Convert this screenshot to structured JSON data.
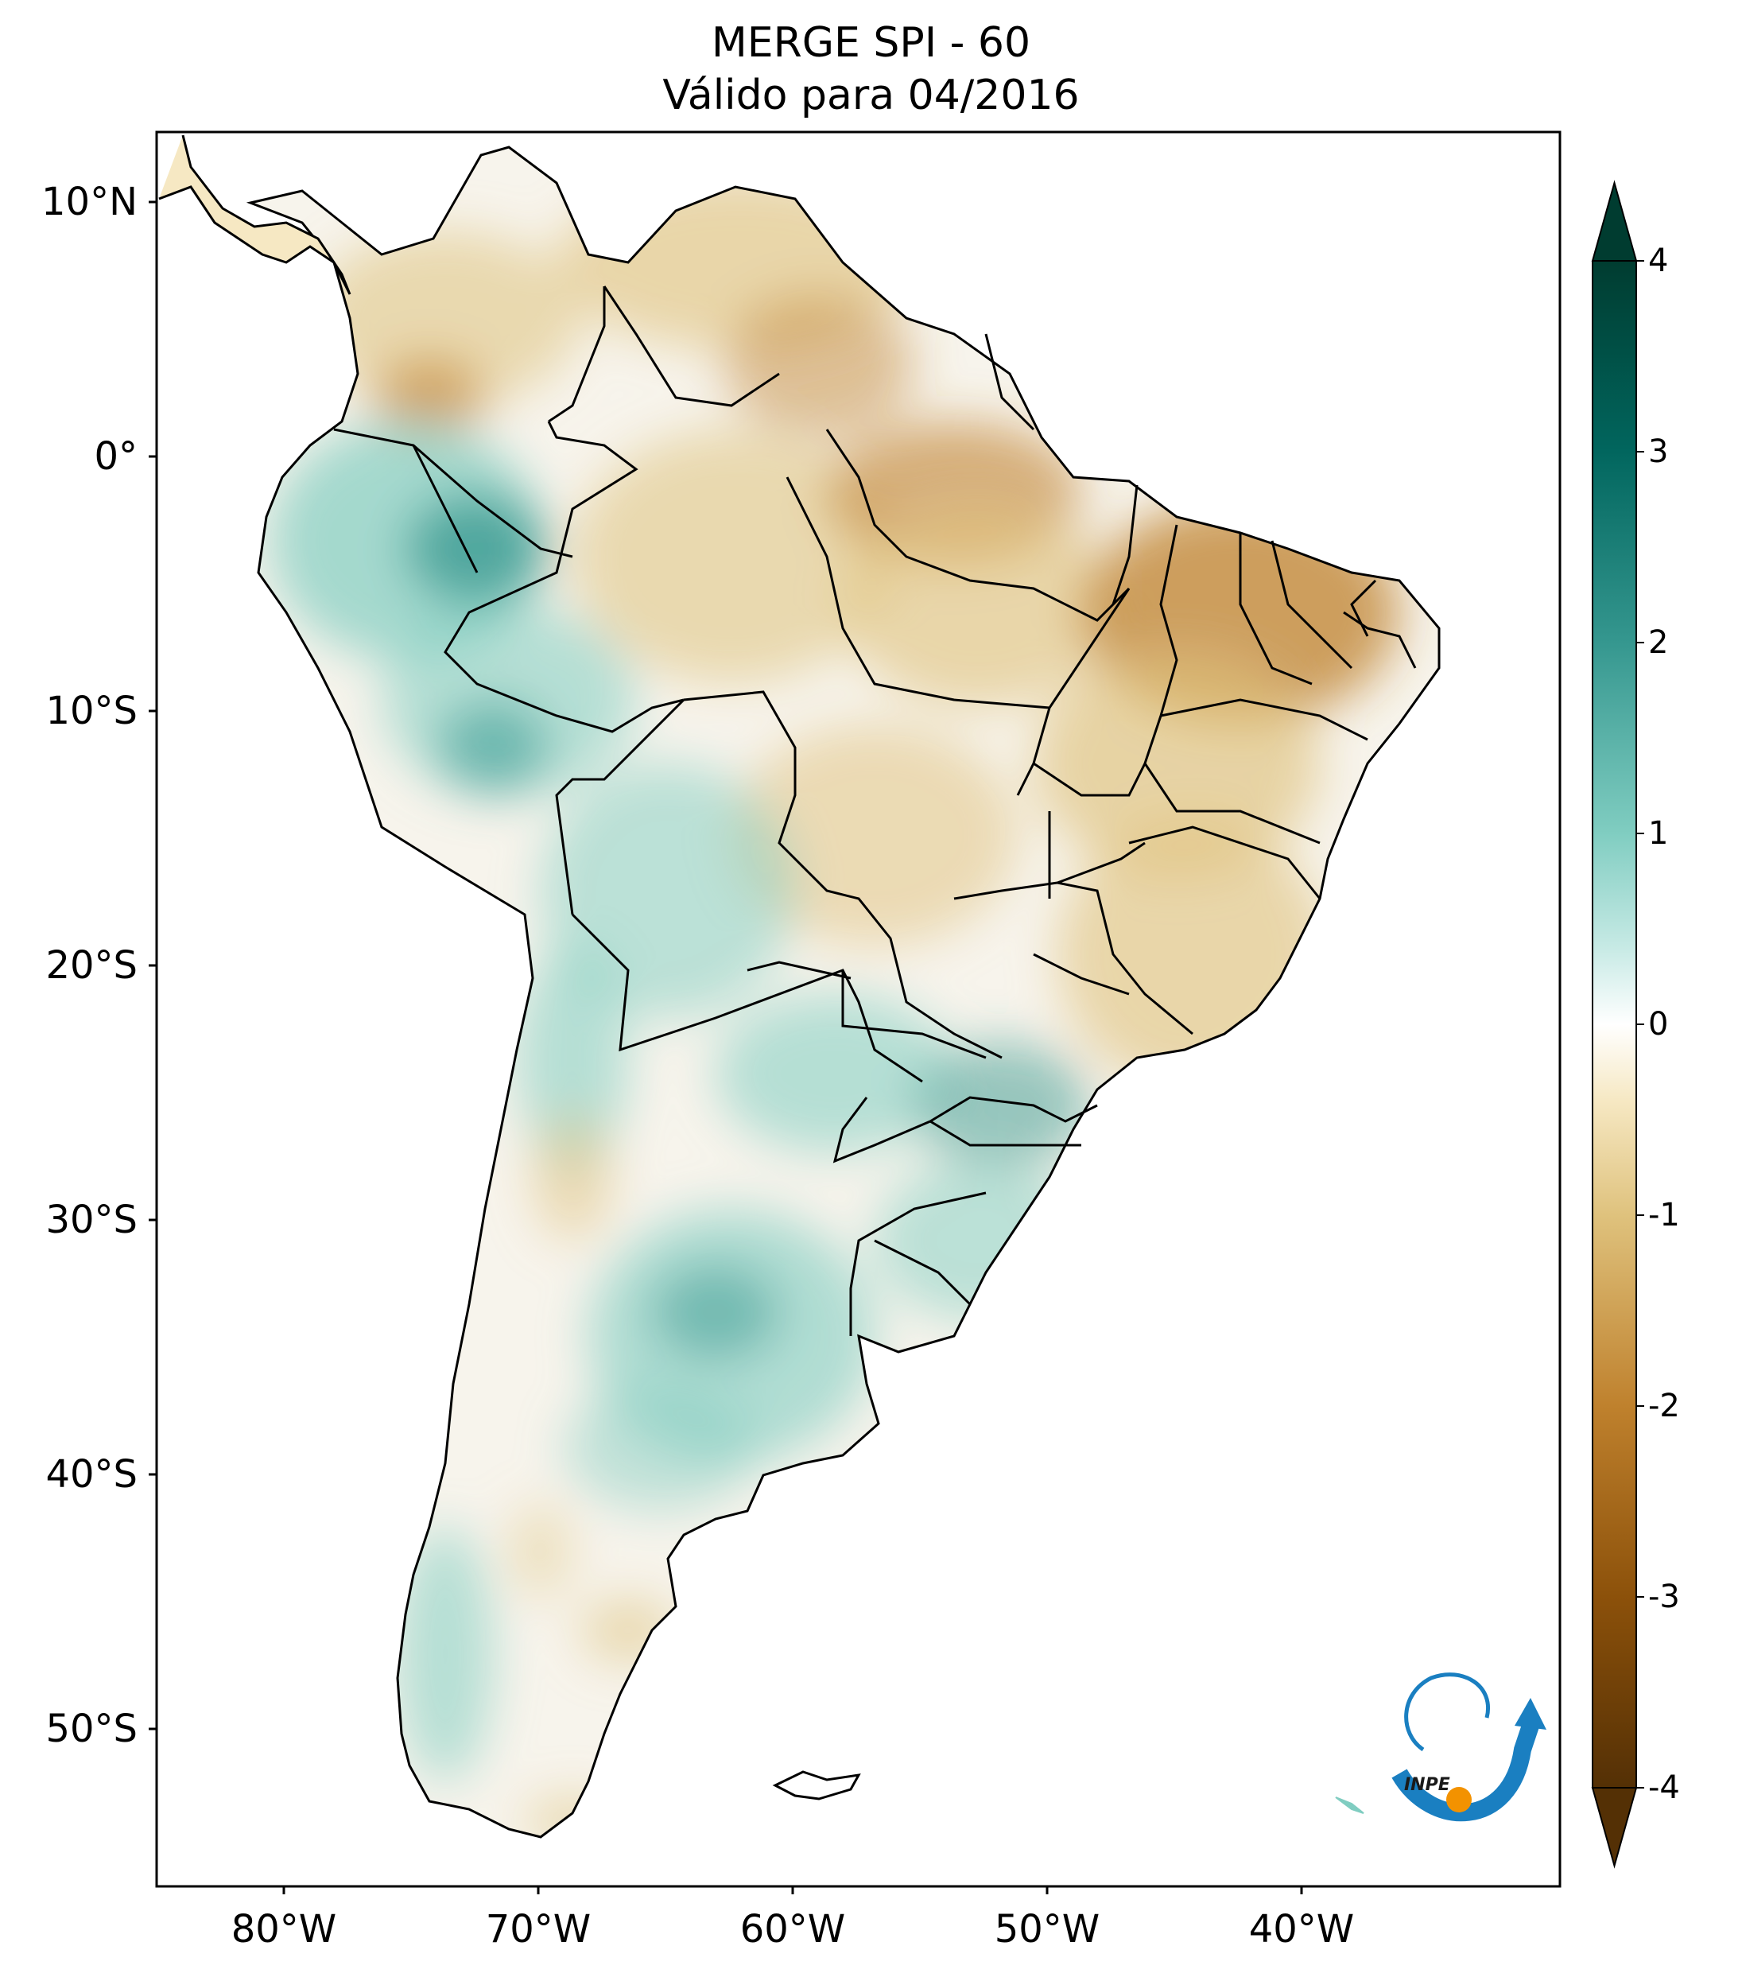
{
  "title": {
    "line1": "MERGE   SPI - 60",
    "line2": "Válido para 04/2016"
  },
  "map": {
    "latitude_labels": [
      "10°N",
      "0°",
      "10°S",
      "20°S",
      "30°S",
      "40°S",
      "50°S"
    ],
    "longitude_labels": [
      "80°W",
      "70°W",
      "60°W",
      "50°W",
      "40°W"
    ],
    "lon_range": [
      -85,
      -30
    ],
    "lat_range": [
      -56,
      13
    ]
  },
  "colorbar": {
    "tick_labels": [
      "4",
      "3",
      "2",
      "1",
      "0",
      "-1",
      "-2",
      "-3",
      "-4"
    ],
    "range": [
      -4,
      4
    ],
    "extend": "both",
    "colormap": "BrBG",
    "colors": {
      "dry_extreme": "#543005",
      "dry": "#bf812d",
      "dry_light": "#f6e8c3",
      "neutral": "#ffffff",
      "wet_light": "#c7eae5",
      "wet": "#35978f",
      "wet_extreme": "#003c30"
    }
  },
  "logo": {
    "text": "INPE",
    "icon": "inpe-logo-icon",
    "colors": {
      "arrow": "#1a7fc1",
      "dot": "#f39200"
    }
  }
}
